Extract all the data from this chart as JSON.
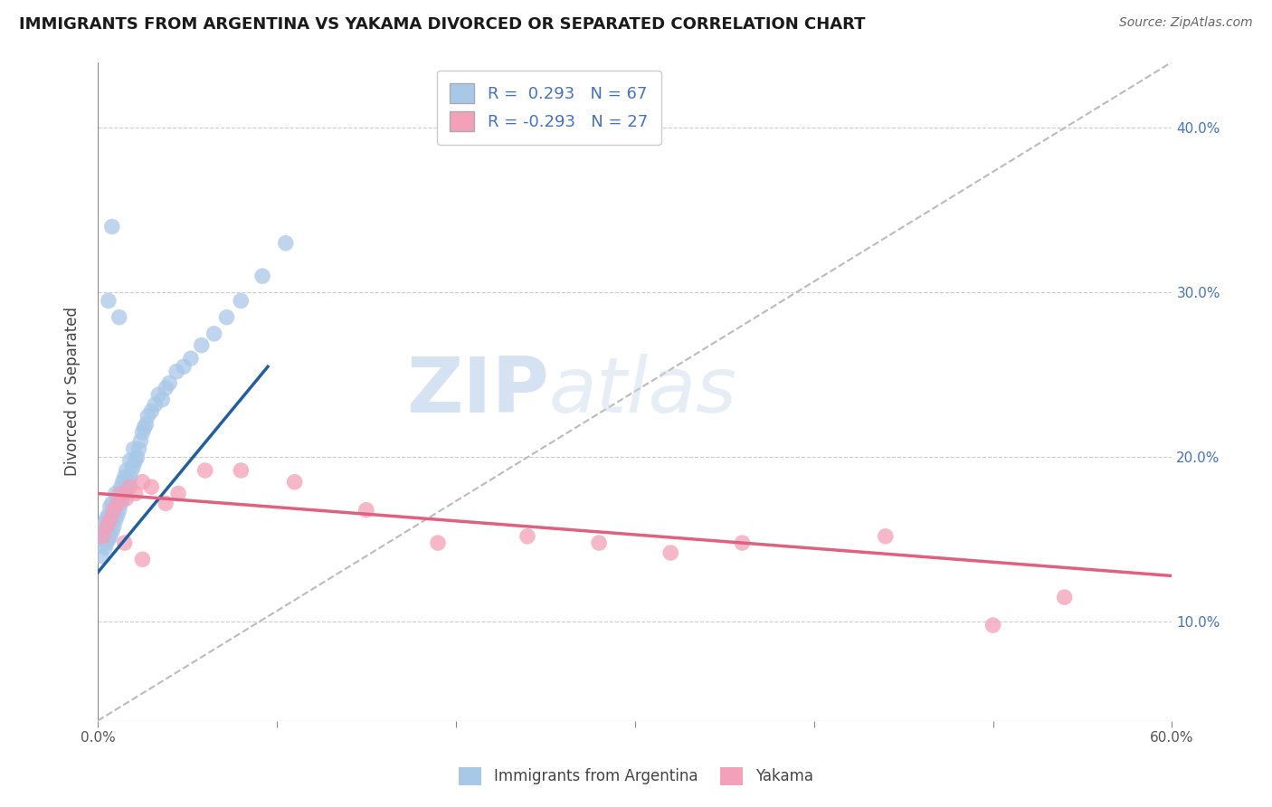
{
  "title": "IMMIGRANTS FROM ARGENTINA VS YAKAMA DIVORCED OR SEPARATED CORRELATION CHART",
  "source_text": "Source: ZipAtlas.com",
  "ylabel": "Divorced or Separated",
  "legend_label_1": "Immigrants from Argentina",
  "legend_label_2": "Yakama",
  "legend_R1": "R =  0.293",
  "legend_N1": "N = 67",
  "legend_R2": "R = -0.293",
  "legend_N2": "N = 27",
  "xlim": [
    0.0,
    0.6
  ],
  "ylim": [
    0.04,
    0.44
  ],
  "xticks": [
    0.0,
    0.1,
    0.2,
    0.3,
    0.4,
    0.5,
    0.6
  ],
  "xtick_labels": [
    "0.0%",
    "",
    "",
    "",
    "",
    "",
    "60.0%"
  ],
  "yticks": [
    0.1,
    0.2,
    0.3,
    0.4
  ],
  "ytick_labels": [
    "10.0%",
    "20.0%",
    "30.0%",
    "40.0%"
  ],
  "color_blue": "#a8c8e8",
  "color_pink": "#f4a0b8",
  "color_blue_line": "#2060a0",
  "color_pink_line": "#e06080",
  "color_ref_line": "#bbbbbb",
  "background": "#ffffff",
  "watermark_zip": "ZIP",
  "watermark_atlas": "atlas",
  "blue_dots_x": [
    0.002,
    0.003,
    0.003,
    0.004,
    0.004,
    0.004,
    0.005,
    0.005,
    0.005,
    0.006,
    0.006,
    0.006,
    0.007,
    0.007,
    0.007,
    0.008,
    0.008,
    0.008,
    0.009,
    0.009,
    0.01,
    0.01,
    0.01,
    0.011,
    0.011,
    0.012,
    0.012,
    0.013,
    0.013,
    0.014,
    0.014,
    0.015,
    0.015,
    0.016,
    0.016,
    0.017,
    0.018,
    0.018,
    0.019,
    0.02,
    0.02,
    0.021,
    0.022,
    0.023,
    0.024,
    0.025,
    0.026,
    0.027,
    0.028,
    0.03,
    0.032,
    0.034,
    0.036,
    0.038,
    0.04,
    0.044,
    0.048,
    0.052,
    0.058,
    0.065,
    0.072,
    0.08,
    0.092,
    0.105,
    0.012,
    0.008,
    0.006
  ],
  "blue_dots_y": [
    0.14,
    0.15,
    0.155,
    0.145,
    0.152,
    0.16,
    0.148,
    0.155,
    0.163,
    0.15,
    0.158,
    0.165,
    0.152,
    0.162,
    0.17,
    0.155,
    0.165,
    0.172,
    0.158,
    0.168,
    0.162,
    0.17,
    0.178,
    0.165,
    0.175,
    0.168,
    0.178,
    0.172,
    0.182,
    0.175,
    0.185,
    0.178,
    0.188,
    0.182,
    0.192,
    0.185,
    0.188,
    0.198,
    0.192,
    0.195,
    0.205,
    0.198,
    0.2,
    0.205,
    0.21,
    0.215,
    0.218,
    0.22,
    0.225,
    0.228,
    0.232,
    0.238,
    0.235,
    0.242,
    0.245,
    0.252,
    0.255,
    0.26,
    0.268,
    0.275,
    0.285,
    0.295,
    0.31,
    0.33,
    0.285,
    0.34,
    0.295
  ],
  "pink_dots_x": [
    0.003,
    0.005,
    0.007,
    0.009,
    0.011,
    0.013,
    0.016,
    0.018,
    0.021,
    0.025,
    0.03,
    0.038,
    0.045,
    0.06,
    0.08,
    0.11,
    0.15,
    0.19,
    0.24,
    0.28,
    0.32,
    0.36,
    0.44,
    0.5,
    0.54,
    0.015,
    0.025
  ],
  "pink_dots_y": [
    0.152,
    0.158,
    0.162,
    0.168,
    0.172,
    0.178,
    0.175,
    0.182,
    0.178,
    0.185,
    0.182,
    0.172,
    0.178,
    0.192,
    0.192,
    0.185,
    0.168,
    0.148,
    0.152,
    0.148,
    0.142,
    0.148,
    0.152,
    0.098,
    0.115,
    0.148,
    0.138
  ],
  "blue_line_x": [
    0.0,
    0.095
  ],
  "blue_line_y": [
    0.13,
    0.255
  ],
  "pink_line_x": [
    0.0,
    0.6
  ],
  "pink_line_y": [
    0.178,
    0.128
  ],
  "ref_line_x": [
    0.0,
    0.6
  ],
  "ref_line_y": [
    0.04,
    0.44
  ]
}
